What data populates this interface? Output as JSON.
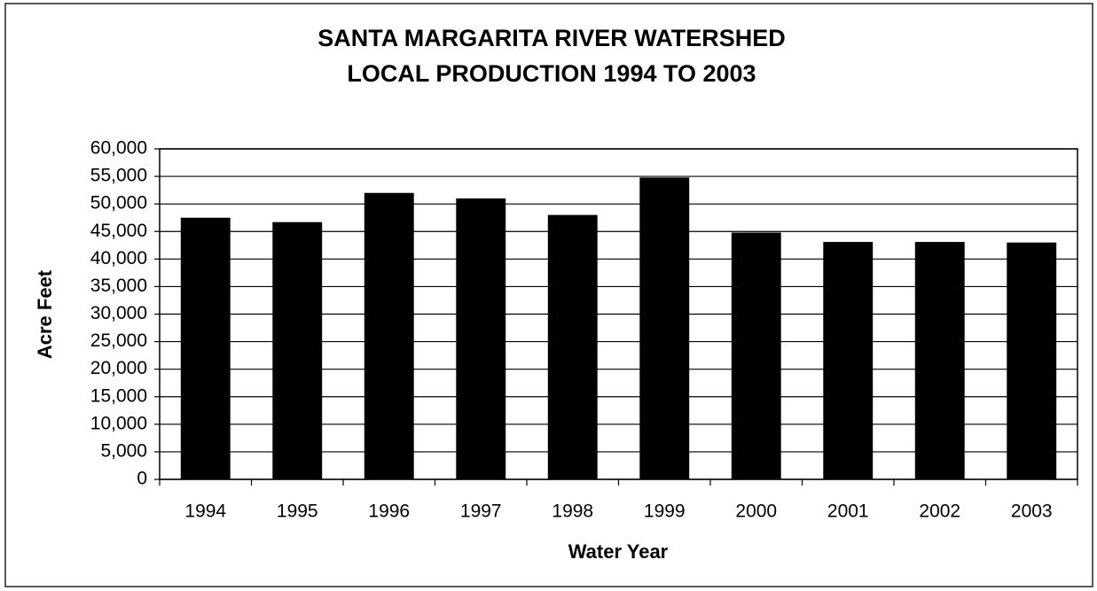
{
  "chart_data": {
    "type": "bar",
    "title": [
      "SANTA MARGARITA RIVER WATERSHED",
      "LOCAL PRODUCTION 1994 TO 2003"
    ],
    "x_label": "Water Year",
    "y_label": "Acre Feet",
    "categories": [
      "1994",
      "1995",
      "1996",
      "1997",
      "1998",
      "1999",
      "2000",
      "2001",
      "2002",
      "2003"
    ],
    "values": [
      47500,
      46700,
      52000,
      51000,
      48000,
      54800,
      44800,
      43100,
      43100,
      43000
    ],
    "color": "#000000",
    "ylim": [
      0,
      60000
    ],
    "yticks": [
      0,
      {
        "value": 5000,
        "label": "5,000"
      },
      {
        "value": 10000,
        "label": "10,000"
      },
      {
        "value": 15000,
        "label": "15,000"
      },
      {
        "value": 20000,
        "label": "20,000"
      },
      {
        "value": 25000,
        "label": "25,000"
      },
      {
        "value": 30000,
        "label": "30,000"
      },
      {
        "value": 35000,
        "label": "35,000"
      },
      {
        "value": 40000,
        "label": "40,000"
      },
      {
        "value": 45000,
        "label": "45,000"
      },
      {
        "value": 50000,
        "label": "50,000"
      },
      {
        "value": 55000,
        "label": "55,000"
      },
      {
        "value": 60000,
        "label": "60,000"
      }
    ],
    "grid": true
  }
}
